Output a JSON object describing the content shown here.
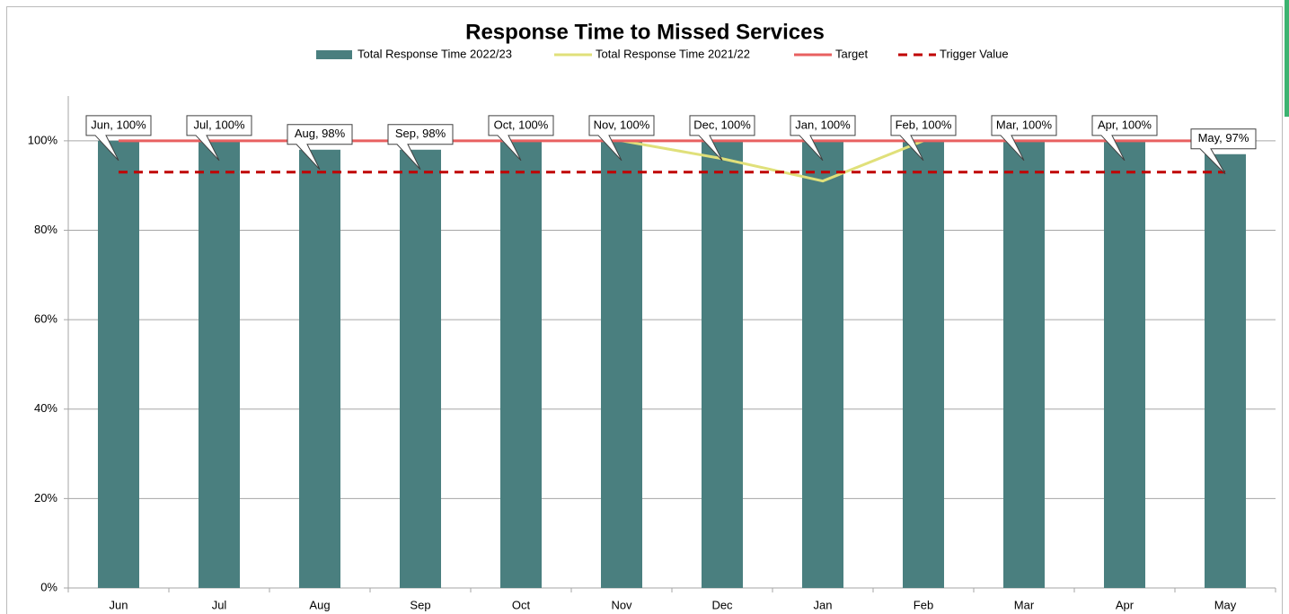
{
  "chart_data": {
    "type": "bar",
    "title": "Response Time to Missed Services",
    "categories": [
      "Jun",
      "Jul",
      "Aug",
      "Sep",
      "Oct",
      "Nov",
      "Dec",
      "Jan",
      "Feb",
      "Mar",
      "Apr",
      "May"
    ],
    "series": [
      {
        "name": "Total Response Time 2022/23",
        "type": "bar",
        "color": "#4a7f7f",
        "values": [
          100,
          100,
          98,
          98,
          100,
          100,
          100,
          100,
          100,
          100,
          100,
          97
        ],
        "value_labels": [
          "Jun, 100%",
          "Jul, 100%",
          "Aug, 98%",
          "Sep, 98%",
          "Oct, 100%",
          "Nov, 100%",
          "Dec, 100%",
          "Jan, 100%",
          "Feb, 100%",
          "Mar, 100%",
          "Apr, 100%",
          "May, 97%"
        ]
      },
      {
        "name": "Total Response Time 2021/22",
        "type": "line",
        "color": "#e0e07a",
        "values": [
          null,
          null,
          null,
          null,
          null,
          100,
          96,
          91,
          100,
          null,
          null,
          null
        ]
      },
      {
        "name": "Target",
        "type": "line",
        "color": "#e86060",
        "values": [
          100,
          100,
          100,
          100,
          100,
          100,
          100,
          100,
          100,
          100,
          100,
          100
        ]
      },
      {
        "name": "Trigger Value",
        "type": "line",
        "color": "#c00000",
        "dashed": true,
        "values": [
          93,
          93,
          93,
          93,
          93,
          93,
          93,
          93,
          93,
          93,
          93,
          93
        ]
      }
    ],
    "ylim": [
      0,
      110
    ],
    "yticks": [
      {
        "value": 0,
        "label": "0%"
      },
      {
        "value": 20,
        "label": "20%"
      },
      {
        "value": 40,
        "label": "40%"
      },
      {
        "value": 60,
        "label": "60%"
      },
      {
        "value": 80,
        "label": "80%"
      },
      {
        "value": 100,
        "label": "100%"
      }
    ],
    "grid": true,
    "legend": "top"
  }
}
